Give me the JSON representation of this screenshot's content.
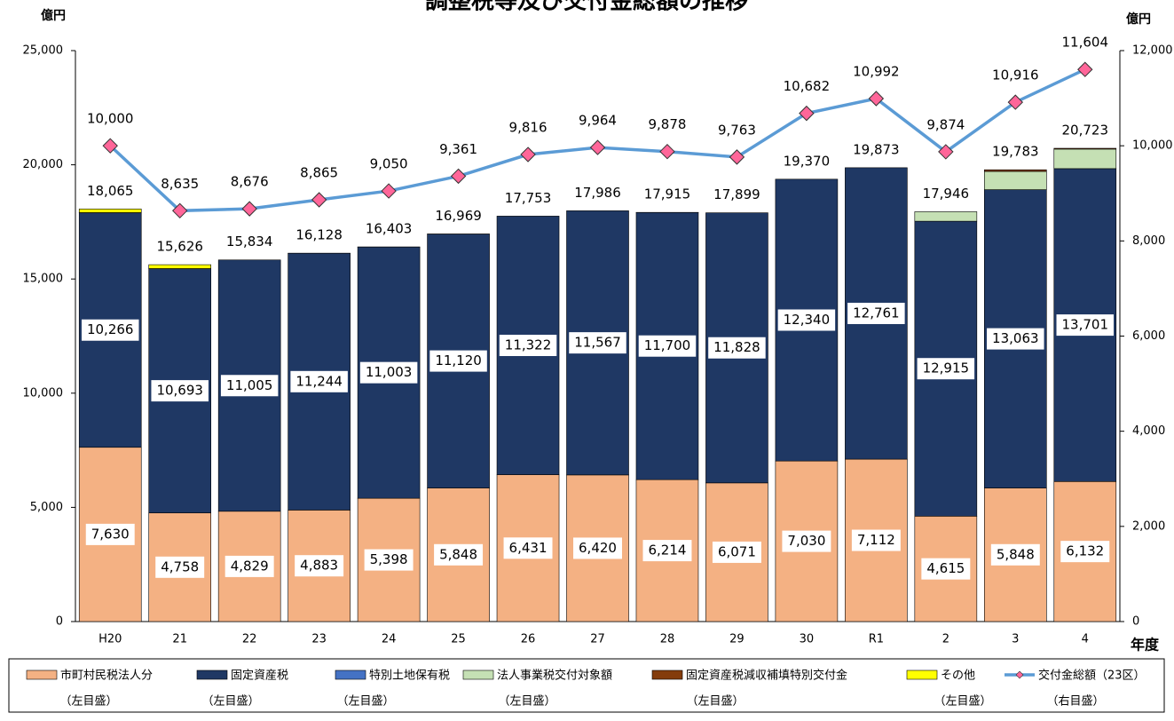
{
  "chart_data": {
    "type": "bar",
    "title": "調整税等及び交付金総額の推移",
    "y_label": "億円",
    "y2_label": "億円",
    "x_label": "年度",
    "categories": [
      "H20",
      "21",
      "22",
      "23",
      "24",
      "25",
      "26",
      "27",
      "28",
      "29",
      "30",
      "R1",
      "2",
      "3",
      "4"
    ],
    "ylim": [
      0,
      25000
    ],
    "yticks": [
      0,
      {
        "value": 5000,
        "label": "5,000"
      },
      {
        "value": 10000,
        "label": "10,000"
      },
      {
        "value": 15000,
        "label": "15,000"
      },
      {
        "value": 20000,
        "label": "20,000"
      },
      {
        "value": 25000,
        "label": "25,000"
      }
    ],
    "y2lim": [
      0,
      12000
    ],
    "y2ticks": [
      0,
      {
        "value": 2000,
        "label": "2,000"
      },
      {
        "value": 4000,
        "label": "4,000"
      },
      {
        "value": 6000,
        "label": "6,000"
      },
      {
        "value": 8000,
        "label": "8,000"
      },
      {
        "value": 10000,
        "label": "10,000"
      },
      {
        "value": 12000,
        "label": "12,000"
      }
    ],
    "series": [
      {
        "name": "市町村民税法人分",
        "legend_note": "（左目盛）",
        "color": "#f4b183",
        "values": [
          7630,
          4758,
          4829,
          4883,
          5398,
          5848,
          6431,
          6420,
          6214,
          6071,
          7030,
          7112,
          4615,
          5848,
          6132
        ],
        "value_labels": [
          "7,630",
          "4,758",
          "4,829",
          "4,883",
          "5,398",
          "5,848",
          "6,431",
          "6,420",
          "6,214",
          "6,071",
          "7,030",
          "7,112",
          "4,615",
          "5,848",
          "6,132"
        ]
      },
      {
        "name": "固定資産税",
        "legend_note": "（左目盛）",
        "color": "#1f3864",
        "values": [
          10266,
          10693,
          11005,
          11244,
          11003,
          11120,
          11322,
          11567,
          11700,
          11828,
          12340,
          12761,
          12915,
          13063,
          13701
        ],
        "value_labels": [
          "10,266",
          "10,693",
          "11,005",
          "11,244",
          "11,003",
          "11,120",
          "11,322",
          "11,567",
          "11,700",
          "11,828",
          "12,340",
          "12,761",
          "12,915",
          "13,063",
          "13,701"
        ]
      },
      {
        "name": "特別土地保有税",
        "legend_note": "（左目盛）",
        "color": "#4472c4",
        "values": [
          10,
          5,
          0,
          1,
          2,
          1,
          0,
          0,
          1,
          0,
          0,
          0,
          0,
          0,
          0
        ]
      },
      {
        "name": "法人事業税交付対象額",
        "legend_note": "（左目盛）",
        "color": "#c5e0b4",
        "values": [
          0,
          0,
          0,
          0,
          0,
          0,
          0,
          0,
          0,
          0,
          0,
          0,
          416,
          800,
          855
        ]
      },
      {
        "name": "固定資産税減収補填特別交付金",
        "legend_note": "（左目盛）",
        "color": "#843c0c",
        "values": [
          0,
          0,
          0,
          0,
          0,
          0,
          0,
          0,
          0,
          0,
          0,
          0,
          0,
          72,
          35
        ]
      },
      {
        "name": "その他",
        "legend_note": "（左目盛）",
        "color": "#ffff00",
        "values": [
          159,
          170,
          0,
          0,
          0,
          0,
          0,
          0,
          0,
          0,
          0,
          0,
          0,
          0,
          0
        ]
      },
      {
        "name": "交付金総額（23区）",
        "legend_note": "（右目盛）",
        "color": "#5b9bd5",
        "axis": "y2",
        "type": "line",
        "marker_color": "#ff6699",
        "values": [
          10000,
          8635,
          8676,
          8865,
          9050,
          9361,
          9816,
          9964,
          9878,
          9763,
          10682,
          10992,
          9874,
          10916,
          11604
        ],
        "value_labels": [
          "10,000",
          "8,635",
          "8,676",
          "8,865",
          "9,050",
          "9,361",
          "9,816",
          "9,964",
          "9,878",
          "9,763",
          "10,682",
          "10,992",
          "9,874",
          "10,916",
          "11,604"
        ]
      }
    ],
    "totals": [
      18065,
      15626,
      15834,
      16128,
      16403,
      16969,
      17753,
      17986,
      17915,
      17899,
      19370,
      19873,
      17946,
      19783,
      20723
    ],
    "total_labels": [
      "18,065",
      "15,626",
      "15,834",
      "16,128",
      "16,403",
      "16,969",
      "17,753",
      "17,986",
      "17,915",
      "17,899",
      "19,370",
      "19,873",
      "17,946",
      "19,783",
      "20,723"
    ]
  }
}
